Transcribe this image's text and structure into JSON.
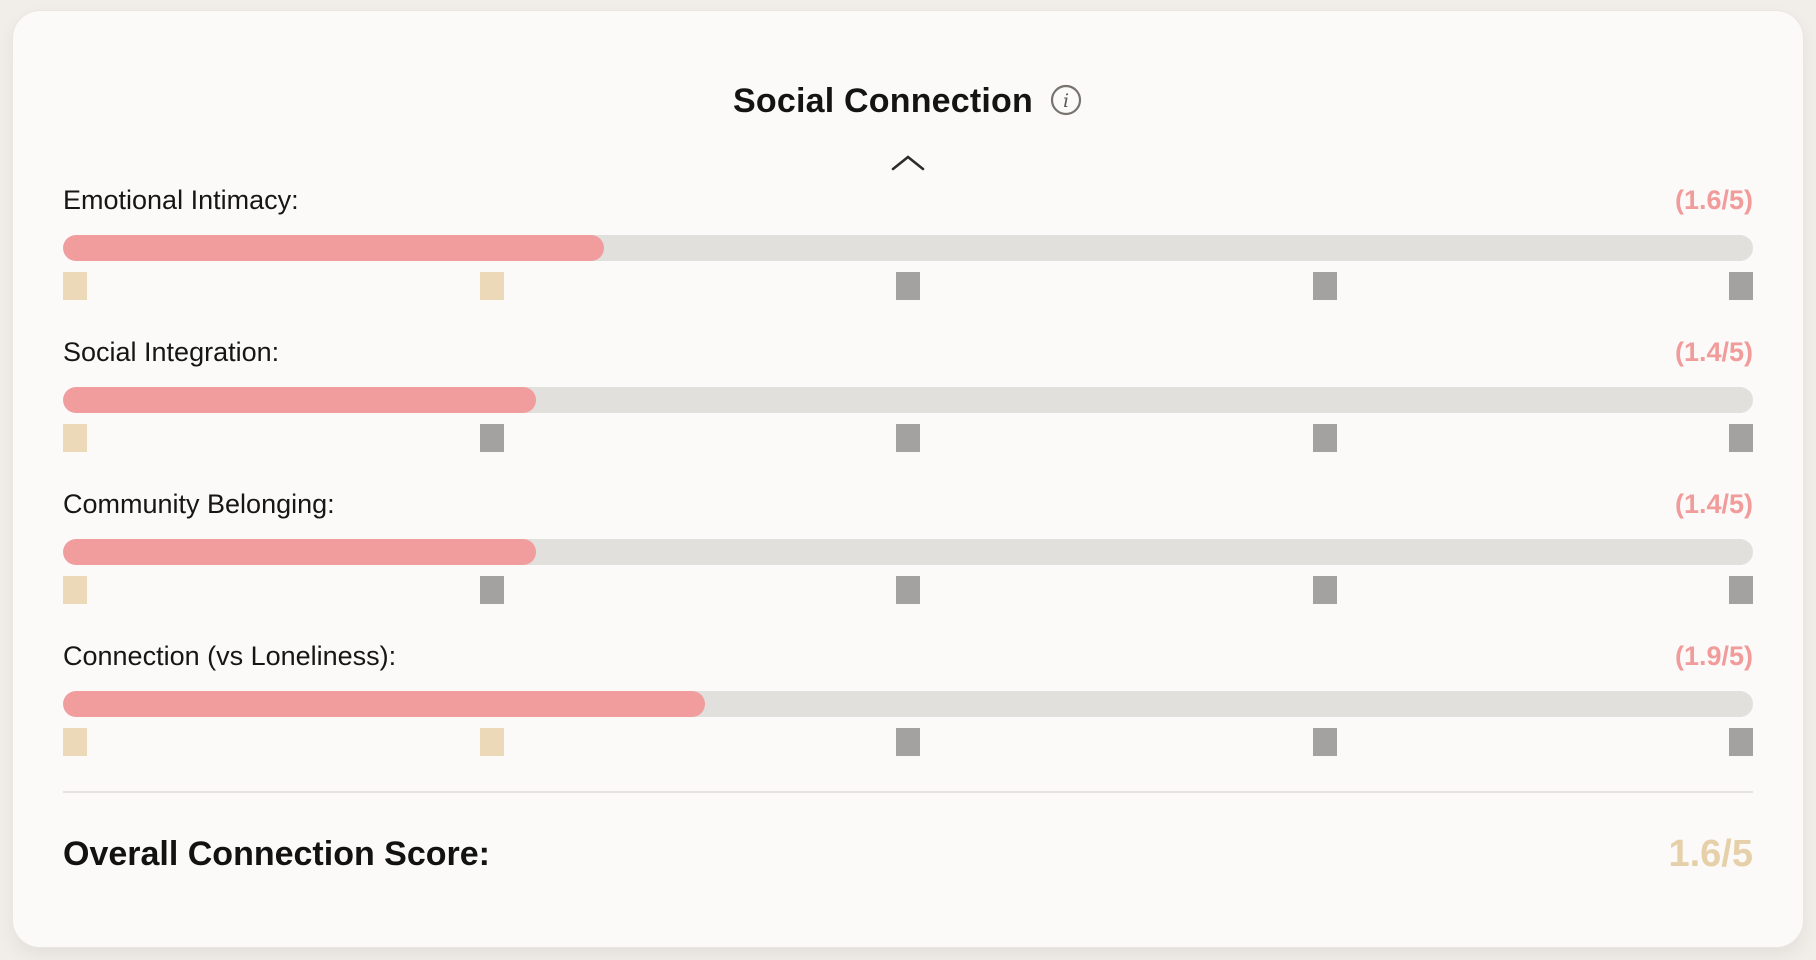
{
  "card": {
    "title": "Social Connection"
  },
  "metrics": [
    {
      "label": "Emotional Intimacy:",
      "score_display": "(1.6/5)",
      "score": 1.6,
      "max": 5,
      "markers": [
        true,
        true,
        false,
        false,
        false
      ]
    },
    {
      "label": "Social Integration:",
      "score_display": "(1.4/5)",
      "score": 1.4,
      "max": 5,
      "markers": [
        true,
        false,
        false,
        false,
        false
      ]
    },
    {
      "label": "Community Belonging:",
      "score_display": "(1.4/5)",
      "score": 1.4,
      "max": 5,
      "markers": [
        true,
        false,
        false,
        false,
        false
      ]
    },
    {
      "label": "Connection (vs Loneliness):",
      "score_display": "(1.9/5)",
      "score": 1.9,
      "max": 5,
      "markers": [
        true,
        true,
        false,
        false,
        false
      ]
    }
  ],
  "overall": {
    "label": "Overall Connection Score:",
    "value": "1.6/5"
  },
  "icons": {
    "info": "info-icon",
    "collapse": "chevron-up-icon"
  },
  "colors": {
    "bar_fill": "#f19c9d",
    "bar_track": "#e1e0dd",
    "marker_active": "#ebd9b8",
    "marker_inactive": "#a3a2a0",
    "score_text": "#f19b9b",
    "overall_score_text": "#e6d0a9",
    "icon_gray": "#77746f",
    "chevron_dark": "#2b2b2b"
  }
}
